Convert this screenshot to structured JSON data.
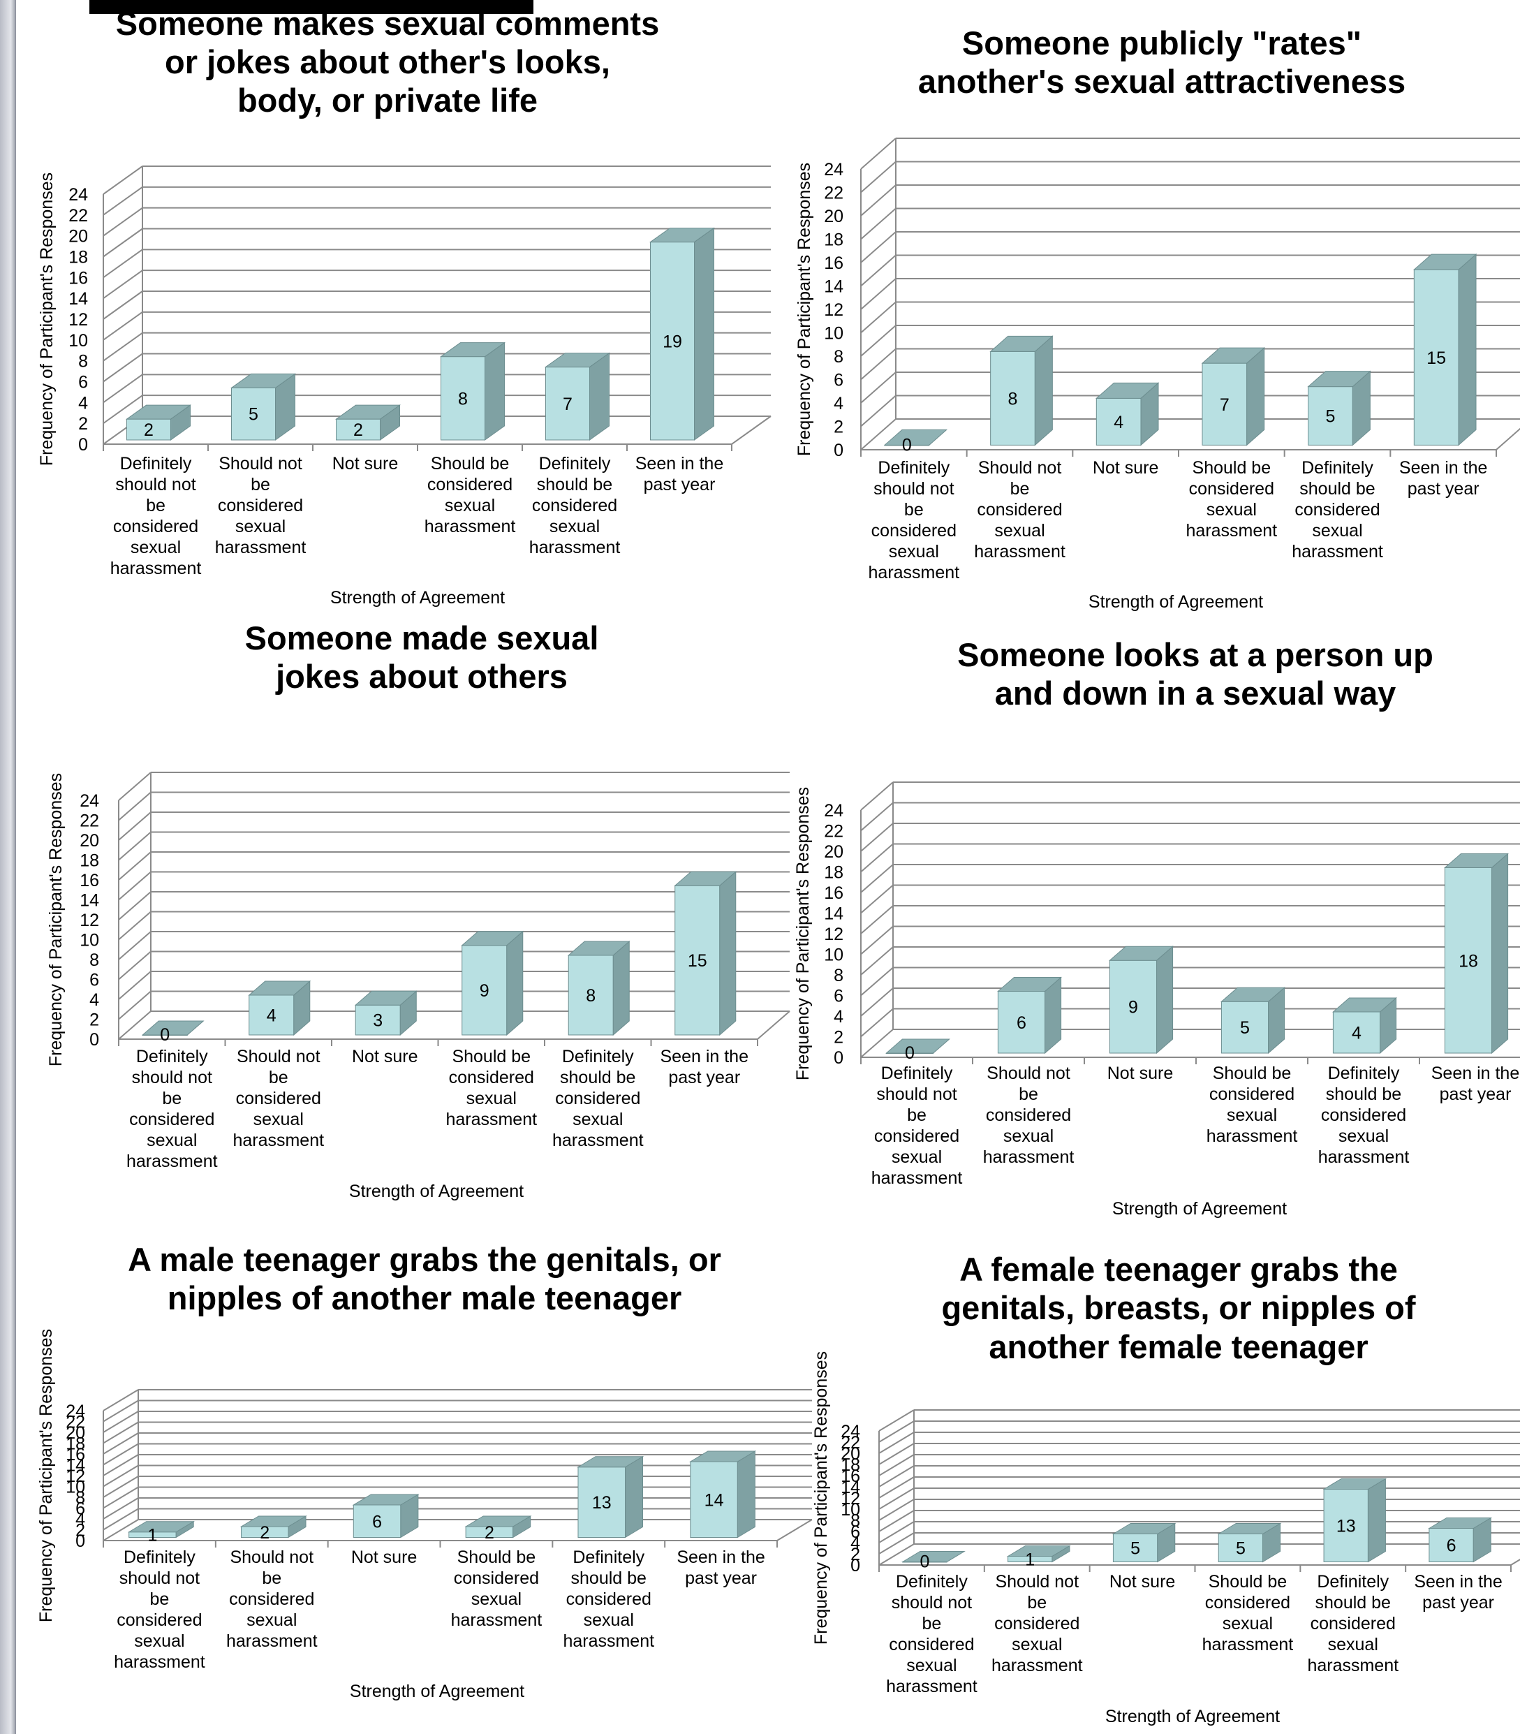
{
  "colors": {
    "bar_front": "#b8e0e2",
    "bar_side": "#7fa1a3",
    "bar_top": "#8fb2b4",
    "grid": "#8a8a8a",
    "text": "#000000"
  },
  "chart_data": [
    {
      "type": "bar",
      "title": "Someone makes sexual comments or jokes about other's looks, body, or private life",
      "xlabel": "Strength of Agreement",
      "ylabel": "Frequency of Participant's Responses",
      "categories": [
        "Definitely should not be considered sexual harassment",
        "Should not be considered sexual harassment",
        "Not sure",
        "Should be considered sexual harassment",
        "Definitely should be considered sexual harassment",
        "Seen in the past year"
      ],
      "values": [
        2,
        5,
        2,
        8,
        7,
        19
      ],
      "ylim": [
        0,
        24
      ],
      "yticks": [
        0,
        2,
        4,
        6,
        8,
        10,
        12,
        14,
        16,
        18,
        20,
        22,
        24
      ],
      "grid": true,
      "legend": "none"
    },
    {
      "type": "bar",
      "title": "Someone publicly \"rates\" another's sexual attractiveness",
      "xlabel": "Strength of Agreement",
      "ylabel": "Frequency of Participant's Responses",
      "categories": [
        "Definitely should not be considered sexual harassment",
        "Should not be considered sexual harassment",
        "Not sure",
        "Should be considered sexual harassment",
        "Definitely should be considered sexual harassment",
        "Seen in the past year"
      ],
      "values": [
        0,
        8,
        4,
        7,
        5,
        15
      ],
      "ylim": [
        0,
        24
      ],
      "yticks": [
        0,
        2,
        4,
        6,
        8,
        10,
        12,
        14,
        16,
        18,
        20,
        22,
        24
      ],
      "grid": true,
      "legend": "none"
    },
    {
      "type": "bar",
      "title": "Someone made sexual jokes about others",
      "xlabel": "Strength of Agreement",
      "ylabel": "Frequency of Participant's Responses",
      "categories": [
        "Definitely should not be considered sexual harassment",
        "Should not be considered sexual harassment",
        "Not sure",
        "Should be considered sexual harassment",
        "Definitely should be considered sexual harassment",
        "Seen in the past year"
      ],
      "values": [
        0,
        4,
        3,
        9,
        8,
        15
      ],
      "ylim": [
        0,
        24
      ],
      "yticks": [
        0,
        2,
        4,
        6,
        8,
        10,
        12,
        14,
        16,
        18,
        20,
        22,
        24
      ],
      "grid": true,
      "legend": "none"
    },
    {
      "type": "bar",
      "title": "Someone looks at a person up and down in a sexual way",
      "xlabel": "Strength of Agreement",
      "ylabel": "Frequency of Participant's Responses",
      "categories": [
        "Definitely should not be considered sexual harassment",
        "Should not be considered sexual harassment",
        "Not sure",
        "Should be considered sexual harassment",
        "Definitely should be considered sexual harassment",
        "Seen in the past year"
      ],
      "values": [
        0,
        6,
        9,
        5,
        4,
        18
      ],
      "ylim": [
        0,
        24
      ],
      "yticks": [
        0,
        2,
        4,
        6,
        8,
        10,
        12,
        14,
        16,
        18,
        20,
        22,
        24
      ],
      "grid": true,
      "legend": "none"
    },
    {
      "type": "bar",
      "title": "A male teenager grabs the genitals, or nipples of another male teenager",
      "xlabel": "Strength of Agreement",
      "ylabel": "Frequency of Participant's Responses",
      "categories": [
        "Definitely should not be considered sexual harassment",
        "Should not be considered sexual harassment",
        "Not sure",
        "Should be considered sexual harassment",
        "Definitely should be considered sexual harassment",
        "Seen in the past year"
      ],
      "values": [
        1,
        2,
        6,
        2,
        13,
        14
      ],
      "ylim": [
        0,
        24
      ],
      "yticks": [
        0,
        2,
        4,
        6,
        8,
        10,
        12,
        14,
        16,
        18,
        20,
        22,
        24
      ],
      "grid": true,
      "legend": "none"
    },
    {
      "type": "bar",
      "title": "A female teenager grabs the genitals, breasts, or nipples of another female teenager",
      "xlabel": "Strength of Agreement",
      "ylabel": "Frequency of Participant's Responses",
      "categories": [
        "Definitely should not be considered sexual harassment",
        "Should not be considered sexual harassment",
        "Not sure",
        "Should be considered sexual harassment",
        "Definitely should be considered sexual harassment",
        "Seen in the past year"
      ],
      "values": [
        0,
        1,
        5,
        5,
        13,
        6
      ],
      "ylim": [
        0,
        24
      ],
      "yticks": [
        0,
        2,
        4,
        6,
        8,
        10,
        12,
        14,
        16,
        18,
        20,
        22,
        24
      ],
      "grid": true,
      "legend": "none"
    }
  ]
}
